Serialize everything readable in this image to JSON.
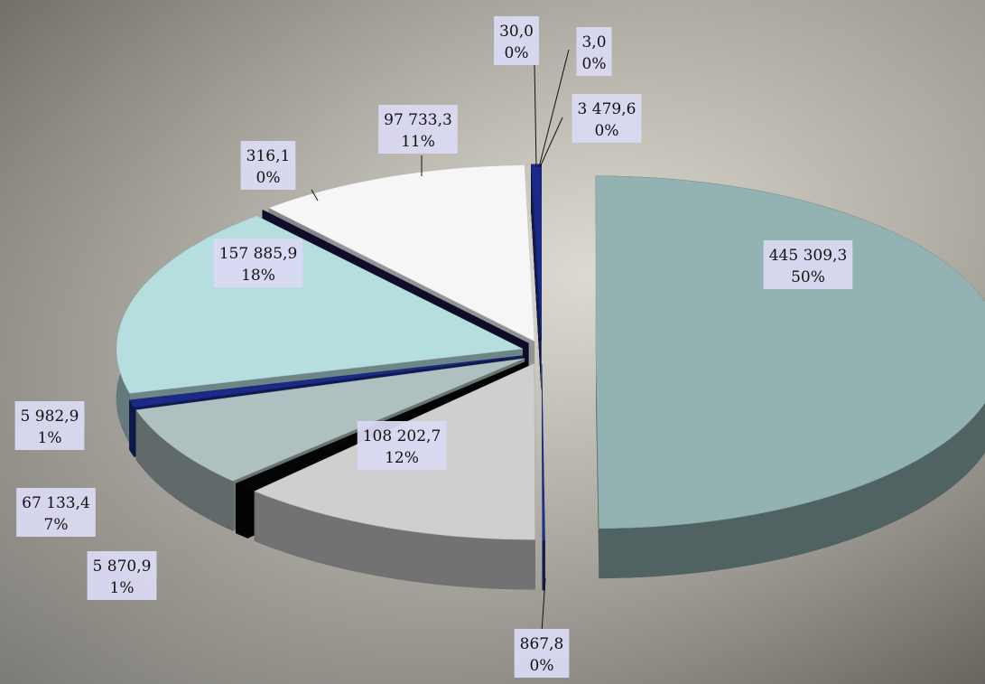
{
  "chart_data": {
    "type": "pie",
    "values": [
      445309.3,
      867.8,
      108202.7,
      5870.9,
      67133.4,
      5982.9,
      157885.9,
      316.1,
      97733.3,
      30.0,
      3.0,
      3479.6
    ],
    "value_labels": [
      "445 309,3",
      "867,8",
      "108 202,7",
      "5 870,9",
      "67 133,4",
      "5 982,9",
      "157 885,9",
      "316,1",
      "97 733,3",
      "30,0",
      "3,0",
      "3 479,6"
    ],
    "percent_labels": [
      "50%",
      "0%",
      "12%",
      "1%",
      "7%",
      "1%",
      "18%",
      "0%",
      "11%",
      "0%",
      "0%",
      "0%"
    ],
    "colors": [
      "#93b3b3",
      "#1f2f8a",
      "#cfcfcf",
      "#050505",
      "#aec0c0",
      "#1b2a86",
      "#b6dede",
      "#151545",
      "#f6f6f6",
      "#202a70",
      "#202a70",
      "#1a2a8a"
    ]
  }
}
